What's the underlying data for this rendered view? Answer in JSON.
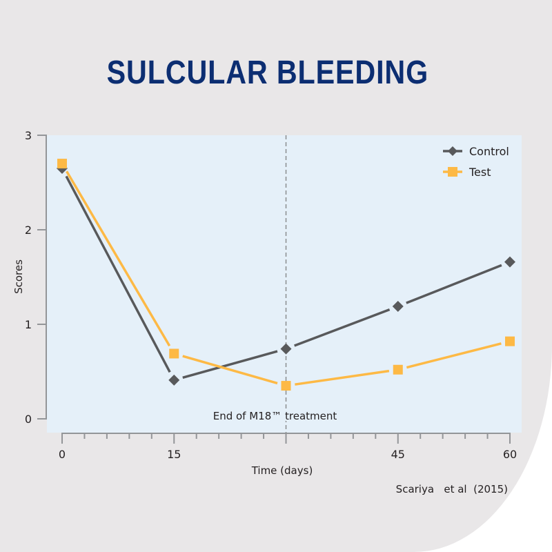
{
  "chart_data": {
    "type": "line",
    "title": "SULCULAR BLEEDING",
    "xlabel": "Time (days)",
    "ylabel": "Scores",
    "xlim": [
      -2,
      61.5
    ],
    "ylim": [
      0,
      3
    ],
    "x_ticks": [
      0,
      15,
      45,
      60
    ],
    "x_tick_labels": [
      "0",
      "15",
      "45",
      "60"
    ],
    "x_minor_step": 3,
    "y_ticks": [
      0,
      1,
      2,
      3
    ],
    "y_tick_labels": [
      "0",
      "1",
      "2",
      "3"
    ],
    "grid": false,
    "legend_position": "top-right",
    "x": [
      0,
      15,
      30,
      45,
      60
    ],
    "series": [
      {
        "name": "Control",
        "marker": "diamond",
        "color": "#58595b",
        "values": [
          2.65,
          0.41,
          0.74,
          1.19,
          1.66
        ]
      },
      {
        "name": "Test",
        "marker": "square",
        "color": "#fdb945",
        "values": [
          2.7,
          0.69,
          0.35,
          0.52,
          0.82
        ]
      }
    ],
    "annotations": [
      {
        "type": "vline",
        "x": 30,
        "label": "End of M18™ treatment"
      }
    ],
    "source": "Scariya   et al  (2015)"
  },
  "colors": {
    "background": "#e9e7e8",
    "plot_background": "#e5f0f9",
    "title": "#0c2e72",
    "axis": "#939598"
  }
}
